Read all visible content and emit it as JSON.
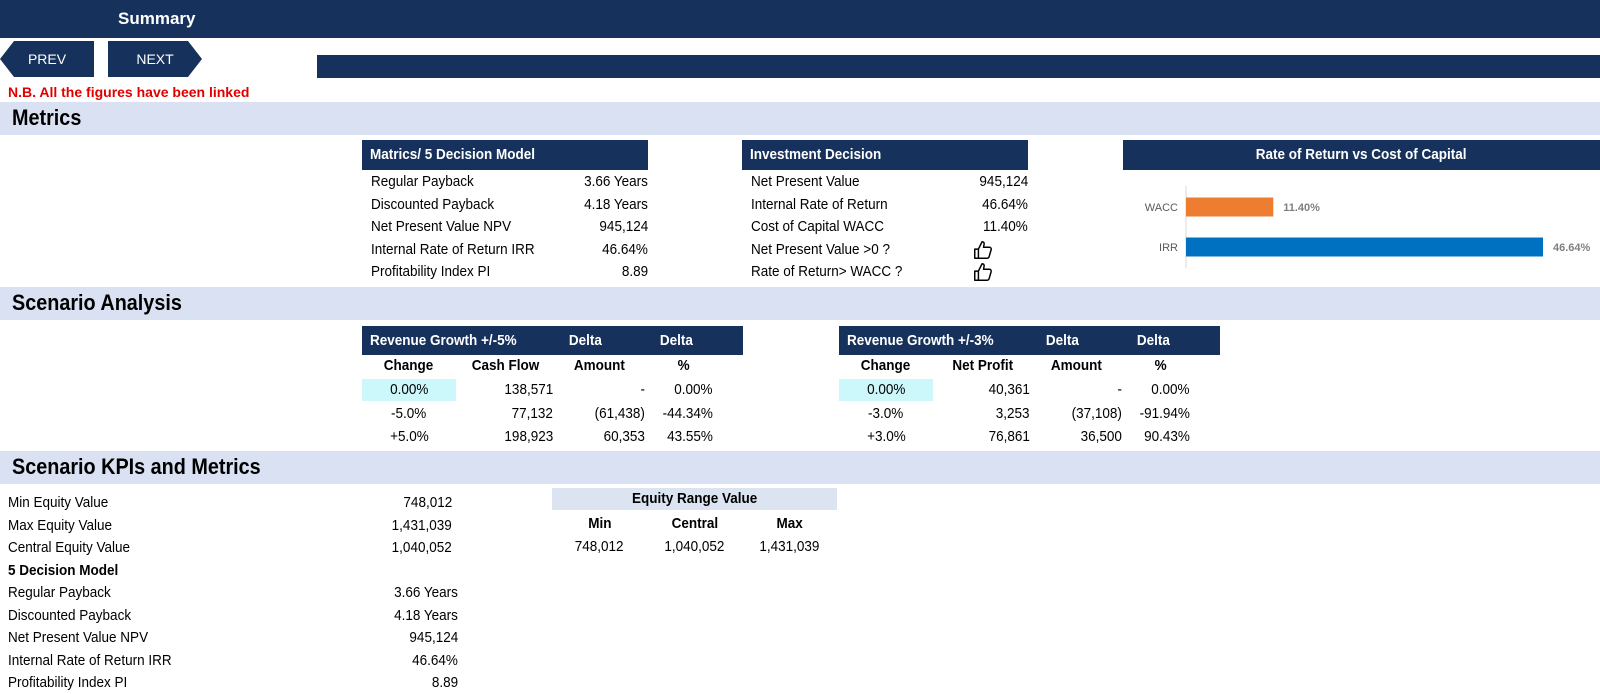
{
  "header": {
    "title": "Summary"
  },
  "nav": {
    "prev_label": "PREV",
    "next_label": "NEXT"
  },
  "note": "N.B. All the figures have been linked",
  "sections": {
    "metrics": "Metrics",
    "scenario": "Scenario Analysis",
    "kpis": "Scenario KPIs and Metrics"
  },
  "model": {
    "title": "Matrics/ 5 Decision Model",
    "rows": [
      {
        "label": "Regular Payback",
        "value": "3.66 Years"
      },
      {
        "label": "Discounted Payback",
        "value": "4.18 Years"
      },
      {
        "label": "Net Present Value NPV",
        "value": "945,124"
      },
      {
        "label": "Internal Rate of Return IRR",
        "value": "46.64%"
      },
      {
        "label": "Profitability Index PI",
        "value": "8.89"
      }
    ]
  },
  "investment": {
    "title": "Investment Decision",
    "rows": [
      {
        "label": "Net Present Value",
        "value": "945,124"
      },
      {
        "label": "Internal Rate of Return",
        "value": "46.64%"
      },
      {
        "label": "Cost of Capital WACC",
        "value": "11.40%"
      },
      {
        "label": "Net Present Value >0 ?",
        "icon": "thumbs-up-icon"
      },
      {
        "label": "Rate of Return> WACC ?",
        "icon": "thumbs-up-icon"
      }
    ]
  },
  "chart_data": {
    "type": "bar",
    "orientation": "horizontal",
    "title": "Rate of Return vs Cost of Capital",
    "categories": [
      "WACC",
      "IRR"
    ],
    "values": [
      11.4,
      46.64
    ],
    "labels": [
      "11.40%",
      "46.64%"
    ],
    "colors": [
      "#ed7d31",
      "#0070c0"
    ],
    "xlim": [
      0,
      46.64
    ],
    "grid": false,
    "legend": "none"
  },
  "scenario_revenue": {
    "header": [
      "Revenue Growth +/-5%",
      "Delta",
      "Delta"
    ],
    "subheader": [
      "Change",
      "Cash Flow",
      "Amount",
      "%"
    ],
    "rows": [
      [
        "0.00%",
        "138,571",
        "-",
        "0.00%"
      ],
      [
        "-5.0%",
        "77,132",
        "(61,438)",
        "-44.34%"
      ],
      [
        "+5.0%",
        "198,923",
        "60,353",
        "43.55%"
      ]
    ]
  },
  "scenario_profit": {
    "header": [
      "Revenue Growth +/-3%",
      "Delta",
      "Delta"
    ],
    "subheader": [
      "Change",
      "Net Profit",
      "Amount",
      "%"
    ],
    "rows": [
      [
        "0.00%",
        "40,361",
        "-",
        "0.00%"
      ],
      [
        "-3.0%",
        "3,253",
        "(37,108)",
        "-91.94%"
      ],
      [
        "+3.0%",
        "76,861",
        "36,500",
        "90.43%"
      ]
    ]
  },
  "kpis": {
    "equity_rows": [
      {
        "label": "Min Equity Value",
        "value": "748,012"
      },
      {
        "label": "Max Equity Value",
        "value": "1,431,039"
      },
      {
        "label": "Central Equity Value",
        "value": "1,040,052"
      }
    ],
    "model_heading": "5 Decision Model",
    "model_rows": [
      {
        "label": "Regular Payback",
        "value": "3.66 Years"
      },
      {
        "label": "Discounted Payback",
        "value": "4.18 Years"
      },
      {
        "label": "Net Present Value NPV",
        "value": "945,124"
      },
      {
        "label": "Internal Rate of Return IRR",
        "value": "46.64%"
      },
      {
        "label": "Profitability Index PI",
        "value": "8.89"
      }
    ]
  },
  "equity_range": {
    "title": "Equity Range Value",
    "columns": [
      "Min",
      "Central",
      "Max"
    ],
    "values": [
      "748,012",
      "1,040,052",
      "1,431,039"
    ]
  },
  "colors": {
    "navy": "#16325c",
    "band": "#d9e1f2",
    "note_red": "#e00000",
    "wacc_bar": "#ed7d31",
    "irr_bar": "#0070c0",
    "highlight_cyan": "#ccf7fb"
  }
}
